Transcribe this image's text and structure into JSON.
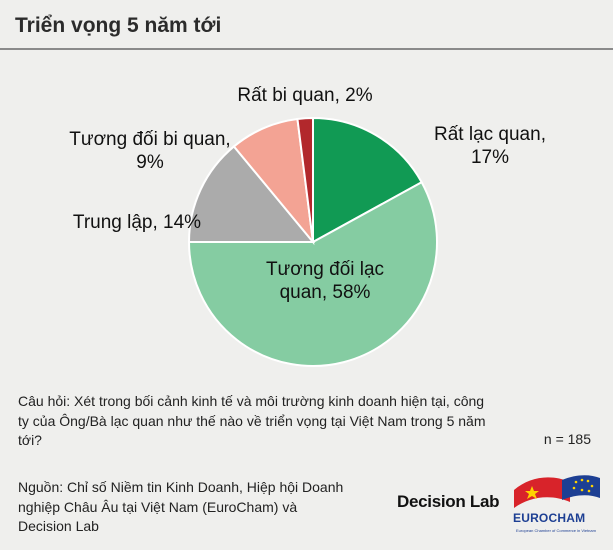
{
  "title": "Triển vọng 5 năm tới",
  "chart_data": {
    "type": "pie",
    "title": "Triển vọng 5 năm tới",
    "slices": [
      {
        "label_lines": [
          "Rất lạc quan,",
          "17%"
        ],
        "value": 17,
        "color": "#119a54"
      },
      {
        "label_lines": [
          "Tương đối lạc",
          "quan, 58%"
        ],
        "value": 58,
        "color": "#85cca2"
      },
      {
        "label_lines": [
          "Trung lập, 14%"
        ],
        "value": 14,
        "color": "#ababab"
      },
      {
        "label_lines": [
          "Tương đối bi quan,",
          "9%"
        ],
        "value": 9,
        "color": "#f3a394"
      },
      {
        "label_lines": [
          "Rất bi quan, 2%"
        ],
        "value": 2,
        "color": "#b2282c"
      }
    ]
  },
  "question": "Câu hỏi: Xét trong bối cảnh kinh tế và môi trường kinh doanh hiện tại, công ty của Ông/Bà lạc quan như thế nào về triển vọng tại Việt Nam trong 5 năm tới?",
  "n_count": "n = 185",
  "source": "Nguồn: Chỉ số Niềm tin Kinh Doanh, Hiệp hội Doanh nghiệp Châu Âu tại Việt Nam (EuroCham) và Decision Lab",
  "brand": "Decision Lab",
  "logo": {
    "name": "EUROCHAM",
    "subtext": "European Chamber of Commerce in Vietnam"
  }
}
